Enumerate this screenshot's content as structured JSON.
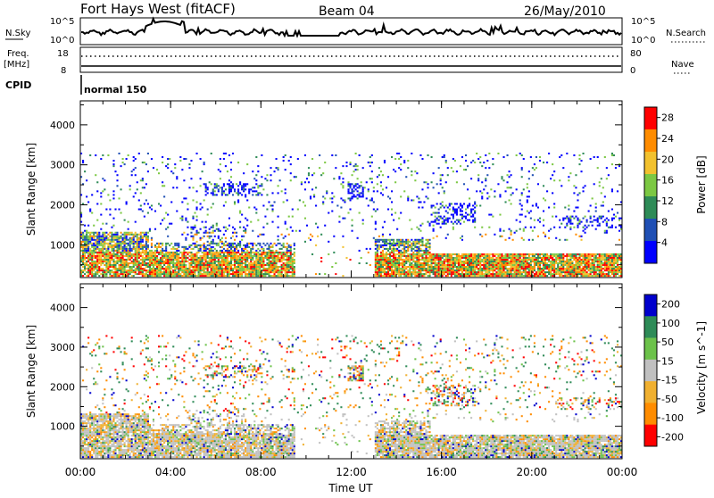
{
  "header": {
    "station": "Fort Hays West (fitACF)",
    "beam": "Beam 04",
    "date": "26/May/2010"
  },
  "param_panel": {
    "nsky_label": "N.Sky",
    "nsearch_label": "N.Search",
    "noise_ticks": [
      "10^5",
      "10^0"
    ],
    "freq_label_line1": "Freq.",
    "freq_label_line2": "[MHz]",
    "freq_ticks": [
      "18",
      "8"
    ],
    "nave_label": "Nave",
    "nave_ticks": [
      "80",
      "0"
    ],
    "cpid_label": "CPID",
    "cpid_value": "normal 150"
  },
  "chart_data": [
    {
      "type": "heatmap",
      "name": "power",
      "ylabel": "Slant Range [km]",
      "xlabel": "Time UT",
      "x_ticks": [
        "00:00",
        "04:00",
        "08:00",
        "12:00",
        "16:00",
        "20:00",
        "00:00"
      ],
      "xlim_hours": [
        0,
        24
      ],
      "ylim": [
        180,
        4600
      ],
      "y_ticks": [
        1000,
        2000,
        3000,
        4000
      ],
      "colorbar_label": "Power [dB]",
      "colorbar_ticks": [
        4,
        8,
        12,
        16,
        20,
        24,
        28
      ],
      "colorbar_range": [
        0,
        30
      ],
      "colors": [
        "#0000ff",
        "#1f4fb4",
        "#2e8b57",
        "#7cc843",
        "#f2c12e",
        "#ff8c00",
        "#ff0000"
      ]
    },
    {
      "type": "heatmap",
      "name": "velocity",
      "ylabel": "Slant Range [km]",
      "xlabel": "Time UT",
      "x_ticks": [
        "00:00",
        "04:00",
        "08:00",
        "12:00",
        "16:00",
        "20:00",
        "00:00"
      ],
      "xlim_hours": [
        0,
        24
      ],
      "ylim": [
        180,
        4600
      ],
      "y_ticks": [
        1000,
        2000,
        3000,
        4000
      ],
      "colorbar_label": "Velocity [m s^-1]",
      "colorbar_ticks": [
        200,
        100,
        50,
        15,
        -15,
        -50,
        -100,
        -200
      ],
      "colorbar_range": [
        -250,
        250
      ],
      "colors": [
        "#0000cd",
        "#2e8b57",
        "#6cc24a",
        "#c0c0c0",
        "#f0b030",
        "#ff8c00",
        "#ff0000"
      ]
    }
  ]
}
